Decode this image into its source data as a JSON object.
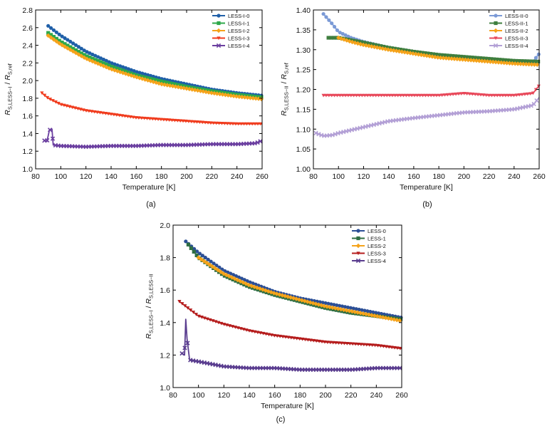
{
  "figure": {
    "captions": [
      "(a)",
      "(b)",
      "(c)"
    ]
  },
  "chart_data": [
    {
      "type": "line",
      "panel": "(a)",
      "xlabel": "Temperature [K]",
      "ylabel_main": "R",
      "ylabel_sub_num": "S,LESS−I",
      "ylabel_sep": " / ",
      "ylabel_sub_den": "S,ref",
      "xlim": [
        80,
        260
      ],
      "ylim": [
        1.0,
        2.8
      ],
      "xticks": [
        80,
        100,
        120,
        140,
        160,
        180,
        200,
        220,
        240,
        260
      ],
      "yticks": [
        1.0,
        1.2,
        1.4,
        1.6,
        1.8,
        2.0,
        2.2,
        2.4,
        2.6,
        2.8
      ],
      "xtick_labels": [
        "80",
        "100",
        "120",
        "140",
        "160",
        "180",
        "200",
        "220",
        "240",
        "260"
      ],
      "ytick_labels": [
        "1.0",
        "1.2",
        "1.4",
        "1.6",
        "1.8",
        "2.0",
        "2.2",
        "2.4",
        "2.6",
        "2.8"
      ],
      "legend_position": "top-right",
      "series": [
        {
          "name": "LESS-I-0",
          "color": "#1f5fa8",
          "marker": "circle",
          "x": [
            90,
            100,
            120,
            140,
            160,
            180,
            200,
            220,
            240,
            260
          ],
          "y": [
            2.62,
            2.51,
            2.33,
            2.2,
            2.1,
            2.02,
            1.96,
            1.9,
            1.86,
            1.83
          ]
        },
        {
          "name": "LESS-I-1",
          "color": "#2ea84a",
          "marker": "square",
          "x": [
            90,
            100,
            120,
            140,
            160,
            180,
            200,
            220,
            240,
            260
          ],
          "y": [
            2.54,
            2.44,
            2.28,
            2.16,
            2.06,
            1.99,
            1.93,
            1.88,
            1.84,
            1.81
          ]
        },
        {
          "name": "LESS-I-2",
          "color": "#f5a31a",
          "marker": "diamond",
          "x": [
            90,
            100,
            120,
            140,
            160,
            180,
            200,
            220,
            240,
            260
          ],
          "y": [
            2.51,
            2.41,
            2.25,
            2.13,
            2.04,
            1.96,
            1.91,
            1.86,
            1.82,
            1.79
          ]
        },
        {
          "name": "LESS-I-3",
          "color": "#f03c1e",
          "marker": "triangle-down",
          "x": [
            85,
            90,
            100,
            120,
            140,
            160,
            180,
            200,
            220,
            240,
            260
          ],
          "y": [
            1.86,
            1.8,
            1.73,
            1.66,
            1.62,
            1.58,
            1.56,
            1.54,
            1.52,
            1.51,
            1.51
          ]
        },
        {
          "name": "LESS-I-4",
          "color": "#6b3fa0",
          "marker": "cross",
          "x": [
            87,
            89,
            91,
            93,
            94,
            100,
            120,
            140,
            160,
            180,
            200,
            220,
            240,
            255,
            260
          ],
          "y": [
            1.32,
            1.31,
            1.44,
            1.45,
            1.27,
            1.26,
            1.25,
            1.26,
            1.26,
            1.27,
            1.27,
            1.28,
            1.28,
            1.29,
            1.32
          ]
        }
      ]
    },
    {
      "type": "line",
      "panel": "(b)",
      "xlabel": "Temperature [K]",
      "ylabel_main": "R",
      "ylabel_sub_num": "S,LESS−II",
      "ylabel_sep": " / ",
      "ylabel_sub_den": "S,ref",
      "xlim": [
        80,
        260
      ],
      "ylim": [
        1.0,
        1.4
      ],
      "xticks": [
        80,
        100,
        120,
        140,
        160,
        180,
        200,
        220,
        240,
        260
      ],
      "yticks": [
        1.0,
        1.05,
        1.1,
        1.15,
        1.2,
        1.25,
        1.3,
        1.35,
        1.4
      ],
      "xtick_labels": [
        "80",
        "100",
        "120",
        "140",
        "160",
        "180",
        "200",
        "220",
        "240",
        "260"
      ],
      "ytick_labels": [
        "1.00",
        "1.05",
        "1.10",
        "1.15",
        "1.20",
        "1.25",
        "1.30",
        "1.35",
        "1.40"
      ],
      "legend_position": "top-right",
      "series": [
        {
          "name": "LESS-II-0",
          "color": "#7b9ad6",
          "marker": "circle",
          "x": [
            88,
            95,
            100,
            110,
            120,
            140,
            160,
            180,
            200,
            220,
            240,
            255,
            260
          ],
          "y": [
            1.39,
            1.365,
            1.345,
            1.33,
            1.32,
            1.305,
            1.295,
            1.285,
            1.28,
            1.275,
            1.27,
            1.27,
            1.29
          ]
        },
        {
          "name": "LESS-II-1",
          "color": "#3e7e3e",
          "marker": "square",
          "x": [
            92,
            100,
            120,
            140,
            160,
            180,
            200,
            220,
            240,
            260
          ],
          "y": [
            1.33,
            1.33,
            1.318,
            1.305,
            1.295,
            1.287,
            1.282,
            1.277,
            1.272,
            1.27
          ]
        },
        {
          "name": "LESS-II-2",
          "color": "#f5a31a",
          "marker": "diamond",
          "x": [
            100,
            110,
            120,
            140,
            160,
            180,
            200,
            220,
            240,
            260
          ],
          "y": [
            1.33,
            1.32,
            1.312,
            1.3,
            1.29,
            1.28,
            1.275,
            1.27,
            1.265,
            1.262
          ]
        },
        {
          "name": "LESS-II-3",
          "color": "#e8485a",
          "marker": "triangle-down",
          "x": [
            88,
            100,
            120,
            140,
            160,
            180,
            200,
            220,
            240,
            255,
            260
          ],
          "y": [
            1.185,
            1.185,
            1.185,
            1.185,
            1.185,
            1.185,
            1.19,
            1.185,
            1.185,
            1.19,
            1.21
          ]
        },
        {
          "name": "LESS-II-4",
          "color": "#b3a0d6",
          "marker": "cross",
          "x": [
            82,
            88,
            95,
            100,
            120,
            140,
            160,
            180,
            200,
            220,
            240,
            255,
            260
          ],
          "y": [
            1.09,
            1.083,
            1.085,
            1.09,
            1.105,
            1.12,
            1.128,
            1.135,
            1.142,
            1.145,
            1.15,
            1.16,
            1.18
          ]
        }
      ]
    },
    {
      "type": "line",
      "panel": "(c)",
      "xlabel": "Temperature [K]",
      "ylabel_main": "R",
      "ylabel_sub_num": "S,LESS−I",
      "ylabel_sep": " / ",
      "ylabel_main2": "R",
      "ylabel_sub_den": "S,LESS−II",
      "xlim": [
        80,
        260
      ],
      "ylim": [
        1.0,
        2.0
      ],
      "xticks": [
        80,
        100,
        120,
        140,
        160,
        180,
        200,
        220,
        240,
        260
      ],
      "yticks": [
        1.0,
        1.2,
        1.4,
        1.6,
        1.8,
        2.0
      ],
      "xtick_labels": [
        "80",
        "100",
        "120",
        "140",
        "160",
        "180",
        "200",
        "220",
        "240",
        "260"
      ],
      "ytick_labels": [
        "1.0",
        "1.2",
        "1.4",
        "1.6",
        "1.8",
        "2.0"
      ],
      "legend_position": "top-right",
      "series": [
        {
          "name": "LESS-0",
          "color": "#2c4f96",
          "marker": "circle",
          "x": [
            90,
            100,
            120,
            140,
            160,
            180,
            200,
            220,
            240,
            260
          ],
          "y": [
            1.9,
            1.83,
            1.72,
            1.65,
            1.59,
            1.55,
            1.52,
            1.49,
            1.46,
            1.43
          ]
        },
        {
          "name": "LESS-1",
          "color": "#2f6e43",
          "marker": "square",
          "x": [
            92,
            100,
            120,
            140,
            160,
            180,
            200,
            220,
            240,
            260
          ],
          "y": [
            1.88,
            1.8,
            1.69,
            1.62,
            1.57,
            1.53,
            1.49,
            1.46,
            1.44,
            1.42
          ]
        },
        {
          "name": "LESS-2",
          "color": "#f5a31a",
          "marker": "diamond",
          "x": [
            100,
            120,
            140,
            160,
            180,
            200,
            220,
            240,
            260
          ],
          "y": [
            1.8,
            1.7,
            1.63,
            1.58,
            1.54,
            1.5,
            1.47,
            1.44,
            1.41
          ]
        },
        {
          "name": "LESS-3",
          "color": "#b51c1c",
          "marker": "triangle-down",
          "x": [
            85,
            90,
            100,
            120,
            140,
            160,
            180,
            200,
            220,
            240,
            260
          ],
          "y": [
            1.53,
            1.5,
            1.44,
            1.39,
            1.35,
            1.32,
            1.3,
            1.28,
            1.27,
            1.26,
            1.24
          ]
        },
        {
          "name": "LESS-4",
          "color": "#5a3d8f",
          "marker": "cross",
          "x": [
            87,
            89,
            90,
            91,
            93,
            100,
            120,
            140,
            160,
            180,
            200,
            220,
            240,
            260
          ],
          "y": [
            1.21,
            1.2,
            1.42,
            1.3,
            1.17,
            1.16,
            1.13,
            1.12,
            1.12,
            1.11,
            1.11,
            1.11,
            1.12,
            1.12
          ]
        }
      ]
    }
  ]
}
